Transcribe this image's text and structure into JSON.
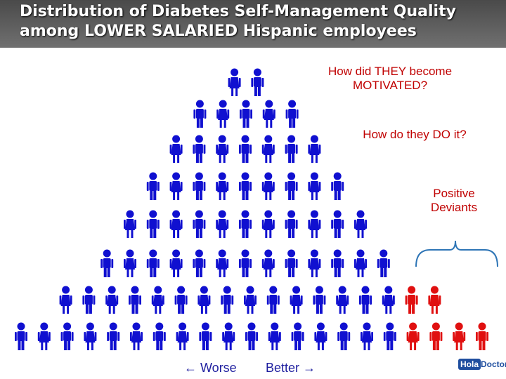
{
  "header": {
    "title_lines": [
      "Distribution of Diabetes Self-Management Quality",
      "among LOWER SALARIED Hispanic employees"
    ]
  },
  "annotations": [
    "How did THEY become MOTIVATED?",
    "How do they DO it?",
    "Positive Deviants"
  ],
  "axis": {
    "left": "Worse",
    "right": "Better"
  },
  "pyramid": {
    "rows": [
      {
        "blue": 2,
        "red": 0
      },
      {
        "blue": 5,
        "red": 0
      },
      {
        "blue": 7,
        "red": 0
      },
      {
        "blue": 9,
        "red": 0
      },
      {
        "blue": 11,
        "red": 0
      },
      {
        "blue": 13,
        "red": 0
      },
      {
        "blue": 15,
        "red": 2
      },
      {
        "blue": 17,
        "red": 4
      }
    ]
  },
  "logo": {
    "part1": "Hola",
    "part2": "Doctor"
  }
}
